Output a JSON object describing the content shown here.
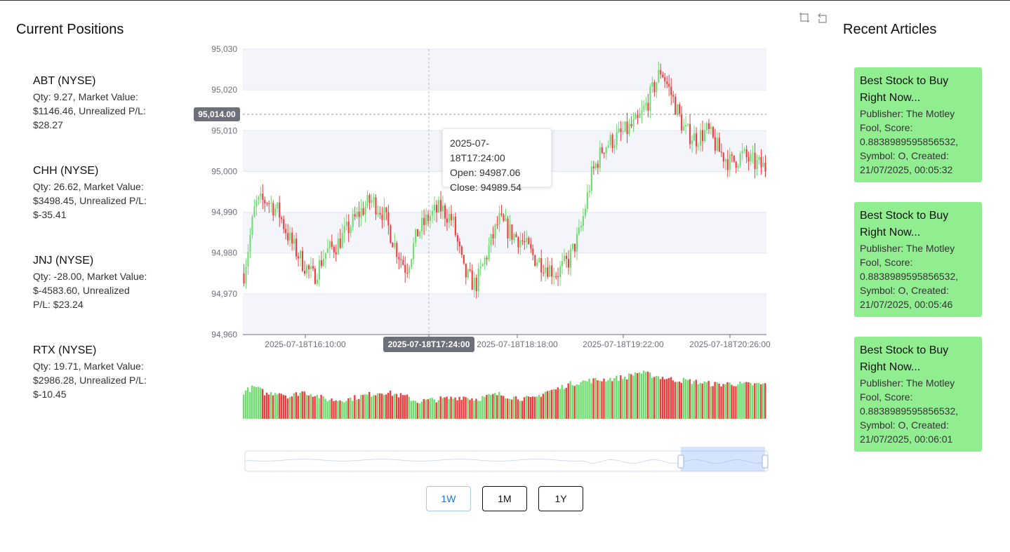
{
  "left_panel": {
    "title": "Current Positions",
    "positions": [
      {
        "title": "ABT (NYSE)",
        "details": "Qty: 9.27, Market Value: $1146.46, Unrealized P/L: $28.27",
        "status": "gain"
      },
      {
        "title": "CHH (NYSE)",
        "details": "Qty: 26.62, Market Value: $3498.45, Unrealized P/L: $-35.41",
        "status": "loss"
      },
      {
        "title": "JNJ (NYSE)",
        "details": "Qty: -28.00, Market Value: $-4583.60, Unrealized P/L: $23.24",
        "status": "gain"
      },
      {
        "title": "RTX (NYSE)",
        "details": "Qty: 19.71, Market Value: $2986.28, Unrealized P/L: $-10.45",
        "status": "loss"
      }
    ]
  },
  "right_panel": {
    "title": "Recent Articles",
    "articles": [
      {
        "title": "Best Stock to Buy Right Now...",
        "details": "Publisher: The Motley Fool, Score: 0.8838989595856532, Symbol: O, Created: 21/07/2025, 00:05:32"
      },
      {
        "title": "Best Stock to Buy Right Now...",
        "details": "Publisher: The Motley Fool, Score: 0.8838989595856532, Symbol: O, Created: 21/07/2025, 00:05:46"
      },
      {
        "title": "Best Stock to Buy Right Now...",
        "details": "Publisher: The Motley Fool, Score: 0.8838989595856532, Symbol: O, Created: 21/07/2025, 00:06:01"
      }
    ]
  },
  "toolbar": {
    "icons": [
      "zoom-select-icon",
      "zoom-reset-icon"
    ]
  },
  "tooltip": {
    "time": "2025-07-18T17:24:00",
    "open": "Open: 94987.06",
    "close": "Close: 94989.54"
  },
  "crosshair": {
    "y_label": "95,014.00",
    "x_label": "2025-07-18T17:24:00",
    "y_value": 95014
  },
  "range_buttons": [
    {
      "label": "1W",
      "active": true
    },
    {
      "label": "1M",
      "active": false
    },
    {
      "label": "1Y",
      "active": false
    }
  ],
  "colors": {
    "up": "#6fdc6f",
    "down": "#f03c3c",
    "gain_card": "#90ee90",
    "loss_card": "#f08080",
    "accent": "#1976d2"
  },
  "chart_data": {
    "type": "candlestick",
    "y_axis": {
      "min": 94960,
      "max": 95030,
      "ticks": [
        "94,960",
        "94,970",
        "94,980",
        "94,990",
        "95,000",
        "95,010",
        "95,020",
        "95,030"
      ]
    },
    "x_axis": {
      "ticks": [
        "2025-07-18T16:10:00",
        "2025-07-18T17:24:00",
        "2025-07-18T18:18:00",
        "2025-07-18T19:22:00",
        "2025-07-18T20:26:00"
      ]
    },
    "close_path": [
      94975,
      94992,
      94993,
      94990,
      94983,
      94978,
      94974,
      94980,
      94982,
      94986,
      94990,
      94993,
      94990,
      94982,
      94976,
      94985,
      94989,
      94991,
      94988,
      94975,
      94972,
      94980,
      94988,
      94985,
      94983,
      94979,
      94977,
      94975,
      94978,
      94985,
      94999,
      95006,
      95008,
      95010,
      95012,
      95018,
      95025,
      95018,
      95010,
      95008,
      95010,
      95005,
      95002,
      95004,
      95002,
      95001
    ],
    "volume": {
      "min": 0,
      "max": 1,
      "profile": [
        0.55,
        0.65,
        0.5,
        0.55,
        0.45,
        0.55,
        0.5,
        0.4,
        0.38,
        0.4,
        0.45,
        0.5,
        0.55,
        0.5,
        0.45,
        0.35,
        0.38,
        0.4,
        0.42,
        0.45,
        0.4,
        0.45,
        0.5,
        0.45,
        0.42,
        0.4,
        0.55,
        0.6,
        0.7,
        0.75,
        0.78,
        0.8,
        0.82,
        0.85,
        0.95,
        0.9,
        0.85,
        0.8,
        0.78,
        0.75,
        0.72,
        0.7,
        0.72,
        0.7,
        0.7,
        0.7
      ]
    }
  }
}
